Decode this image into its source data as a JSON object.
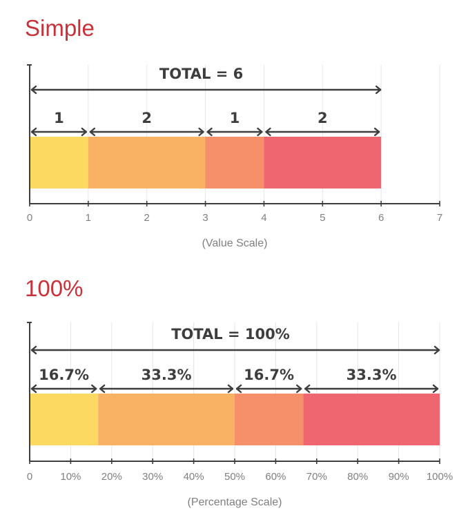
{
  "title_color": "#c9313a",
  "segment_colors": [
    "#fcd961",
    "#f9b264",
    "#f6906a",
    "#f06670"
  ],
  "axis_color": "#3d3d3d",
  "grid_color": "#e4e4e4",
  "chart_data": [
    {
      "type": "bar",
      "orientation": "horizontal",
      "stacked": true,
      "title": "Simple",
      "total_label": "TOTAL =  6",
      "segments": [
        {
          "value": 1,
          "label": "1"
        },
        {
          "value": 2,
          "label": "2"
        },
        {
          "value": 1,
          "label": "1"
        },
        {
          "value": 2,
          "label": "2"
        }
      ],
      "xlim": [
        0,
        7
      ],
      "ticks": [
        0,
        1,
        2,
        3,
        4,
        5,
        6,
        7
      ],
      "tick_labels": [
        "0",
        "1",
        "2",
        "3",
        "4",
        "5",
        "6",
        "7"
      ],
      "xlabel": "(Value Scale)",
      "grid": true
    },
    {
      "type": "bar",
      "orientation": "horizontal",
      "stacked": true,
      "title": "100%",
      "total_label": "TOTAL =  100%",
      "segments": [
        {
          "value": 16.7,
          "label": "16.7%"
        },
        {
          "value": 33.3,
          "label": "33.3%"
        },
        {
          "value": 16.7,
          "label": "16.7%"
        },
        {
          "value": 33.3,
          "label": "33.3%"
        }
      ],
      "xlim": [
        0,
        100
      ],
      "ticks": [
        0,
        10,
        20,
        30,
        40,
        50,
        60,
        70,
        80,
        90,
        100
      ],
      "tick_labels": [
        "0",
        "10%",
        "20%",
        "30%",
        "40%",
        "50%",
        "60%",
        "70%",
        "80%",
        "90%",
        "100%"
      ],
      "xlabel": "(Percentage Scale)",
      "grid": true
    }
  ]
}
